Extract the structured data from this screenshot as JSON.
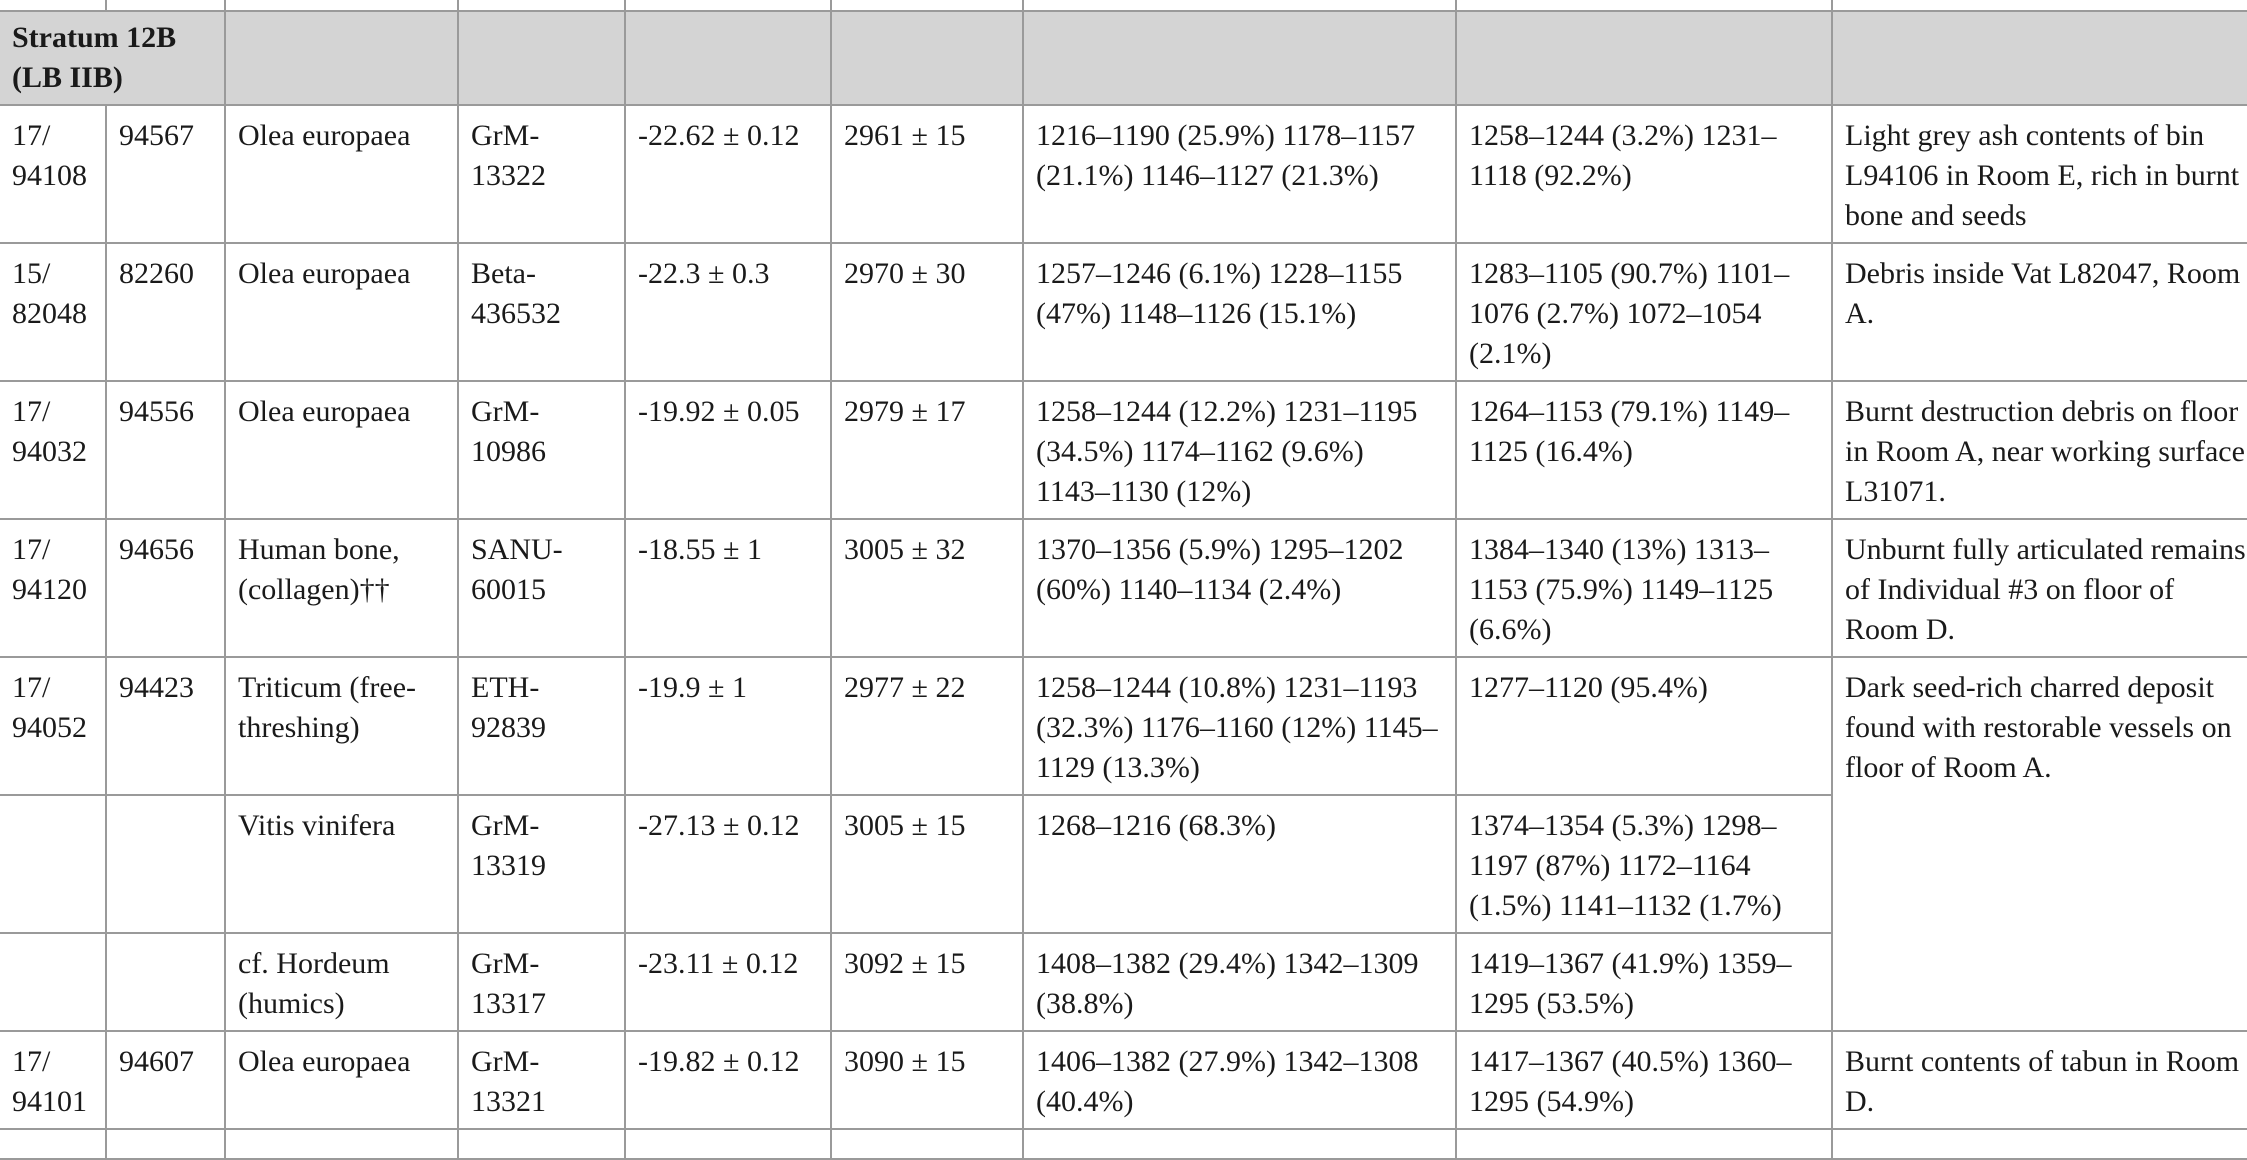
{
  "stratum": {
    "line1": "Stratum 12B",
    "line2": "(LB IIB)"
  },
  "rows": [
    {
      "sample": "17/ 94108",
      "reg": "94567",
      "material": "Olea europaea",
      "lab": "GrM- 13322",
      "d13c": "-22.62 ± 0.12",
      "bp": "2961 ± 15",
      "cal1": "1216–1190 (25.9%) 1178–1157 (21.1%) 1146–1127 (21.3%)",
      "cal2": "1258–1244 (3.2%) 1231–1118 (92.2%)",
      "context": "Light grey ash contents of bin L94106 in Room E, rich in burnt bone and seeds"
    },
    {
      "sample": "15/ 82048",
      "reg": "82260",
      "material": "Olea europaea",
      "lab": "Beta- 436532",
      "d13c": "-22.3 ± 0.3",
      "bp": "2970 ± 30",
      "cal1": "1257–1246 (6.1%) 1228–1155 (47%) 1148–1126 (15.1%)",
      "cal2": "1283–1105 (90.7%) 1101–1076 (2.7%) 1072–1054 (2.1%)",
      "context": "Debris inside Vat L82047, Room A."
    },
    {
      "sample": "17/ 94032",
      "reg": "94556",
      "material": "Olea europaea",
      "lab": "GrM- 10986",
      "d13c": "-19.92 ± 0.05",
      "bp": "2979 ± 17",
      "cal1": "1258–1244 (12.2%) 1231–1195 (34.5%) 1174–1162 (9.6%) 1143–1130 (12%)",
      "cal2": "1264–1153 (79.1%) 1149–1125 (16.4%)",
      "context": "Burnt destruction debris on floor in Room A, near working surface L31071."
    },
    {
      "sample": "17/ 94120",
      "reg": "94656",
      "material": "Human bone, (collagen)††",
      "lab": "SANU- 60015",
      "d13c": "-18.55 ± 1",
      "bp": "3005 ± 32",
      "cal1": "1370–1356 (5.9%) 1295–1202 (60%) 1140–1134 (2.4%)",
      "cal2": "1384–1340 (13%) 1313–1153 (75.9%) 1149–1125 (6.6%)",
      "context": "Unburnt fully articulated remains of Individual #3 on floor of Room D."
    },
    {
      "sample": "17/ 94052",
      "reg": "94423",
      "material": "Triticum (free-threshing)",
      "lab": "ETH- 92839",
      "d13c": "-19.9 ± 1",
      "bp": "2977 ± 22",
      "cal1": "1258–1244 (10.8%) 1231–1193 (32.3%) 1176–1160 (12%) 1145–1129 (13.3%)",
      "cal2": "1277–1120 (95.4%)",
      "context": "Dark seed-rich charred deposit found with restorable vessels on floor of Room A."
    },
    {
      "sample": "",
      "reg": "",
      "material": "Vitis vinifera",
      "lab": "GrM- 13319",
      "d13c": "-27.13 ± 0.12",
      "bp": "3005 ± 15",
      "cal1": "1268–1216 (68.3%)",
      "cal2": "1374–1354 (5.3%) 1298–1197 (87%) 1172–1164 (1.5%) 1141–1132 (1.7%)"
    },
    {
      "sample": "",
      "reg": "",
      "material": "cf. Hordeum (humics)",
      "lab": "GrM- 13317",
      "d13c": "-23.11 ± 0.12",
      "bp": "3092 ± 15",
      "cal1": "1408–1382 (29.4%) 1342–1309 (38.8%)",
      "cal2": "1419–1367 (41.9%) 1359–1295 (53.5%)"
    },
    {
      "sample": "17/ 94101",
      "reg": "94607",
      "material": "Olea europaea",
      "lab": "GrM- 13321",
      "d13c": "-19.82 ± 0.12",
      "bp": "3090 ± 15",
      "cal1": "1406–1382 (27.9%) 1342–1308 (40.4%)",
      "cal2": "1417–1367 (40.5%) 1360–1295 (54.9%)",
      "context": "Burnt contents of tabun in Room D."
    }
  ]
}
